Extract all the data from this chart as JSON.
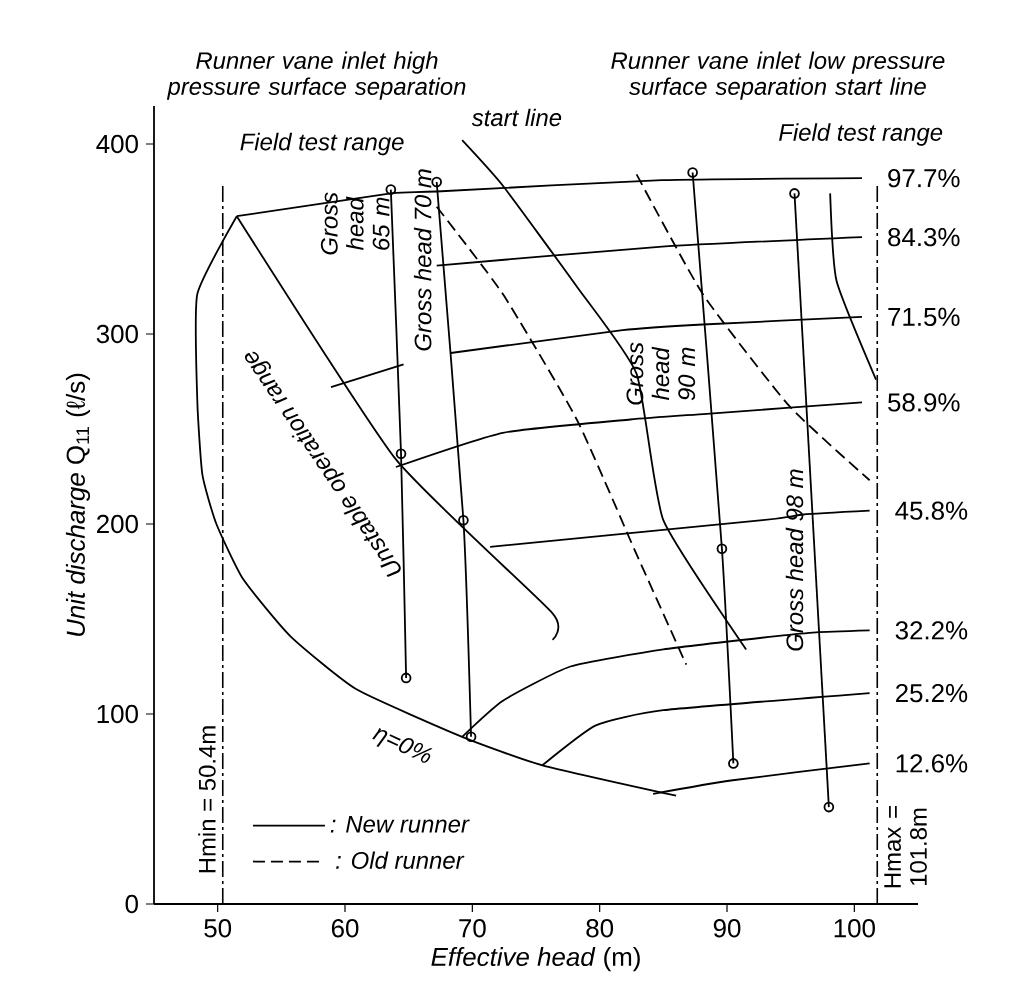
{
  "chart_data": {
    "type": "line",
    "xlabel": "*Effective head* (m)",
    "ylabel": "*Unit discharge* Q$_{11}$ (ℓ/s)",
    "xlim": [
      45,
      105
    ],
    "ylim": [
      0,
      420
    ],
    "xticks": [
      50,
      60,
      70,
      80,
      90,
      100
    ],
    "yticks": [
      0,
      100,
      200,
      300,
      400
    ],
    "grid": false,
    "legend": "bottom left",
    "marker": "none",
    "line_style": "solid",
    "series": [
      {
        "color": "#000000",
        "x": [
          51.5,
          48.4,
          48.4,
          48.8,
          49.9,
          52.0,
          55.7,
          60.9,
          69.2,
          75.5,
          86.0
        ],
        "values": [
          362,
          321,
          265,
          226,
          200,
          171,
          141,
          113,
          88,
          73,
          57
        ]
      },
      {
        "name": "97.7%",
        "color": "#000000",
        "x": [
          51.5,
          63.6,
          67.2,
          84.9,
          100.6
        ],
        "values": [
          362,
          374,
          375,
          381,
          382
        ]
      },
      {
        "name": "84.3%",
        "color": "#000000",
        "x": [
          67.2,
          84.9,
          100.6
        ],
        "values": [
          336,
          346,
          351
        ]
      },
      {
        "name": "71.5%",
        "color": "#000000",
        "x": [
          58.9,
          64.6,
          66.5,
          68.3,
          81.8,
          88.1,
          100.6
        ],
        "values": [
          272,
          284,
          null,
          290,
          302,
          305,
          309
        ]
      },
      {
        "name": "58.9%",
        "color": "#000000",
        "x": [
          64.0,
          72.4,
          82.4,
          88.4,
          100.6
        ],
        "values": [
          230,
          248,
          255,
          258,
          264
        ]
      },
      {
        "name": "45.8%",
        "color": "#000000",
        "x": [
          71.4,
          92.8,
          96.0,
          101.2
        ],
        "values": [
          188,
          202,
          205,
          207
        ]
      },
      {
        "name": "32.2%",
        "color": "#000000",
        "x": [
          69.2,
          72.4,
          77.7,
          85.0,
          93.9,
          97.0,
          101.2
        ],
        "values": [
          88,
          107,
          125,
          134,
          141,
          143,
          144
        ]
      },
      {
        "name": "25.2%",
        "color": "#000000",
        "x": [
          75.5,
          79.7,
          85.0,
          101.2
        ],
        "values": [
          73,
          94,
          102,
          111
        ]
      },
      {
        "name": "12.6%",
        "color": "#000000",
        "x": [
          84.2,
          90.3,
          101.2
        ],
        "values": [
          58,
          65,
          74
        ]
      },
      {
        "color": "#000000",
        "marker": "circle",
        "x": [
          63.6,
          64.4,
          64.8
        ],
        "values": [
          376,
          237,
          119
        ]
      },
      {
        "color": "#000000",
        "marker": "circle",
        "x": [
          67.2,
          69.3,
          69.9
        ],
        "values": [
          380,
          202,
          88
        ]
      },
      {
        "color": "#000000",
        "marker": "circle",
        "x": [
          87.3,
          89.6,
          90.5
        ],
        "values": [
          385,
          187,
          74
        ]
      },
      {
        "color": "#000000",
        "marker": "circle",
        "x": [
          95.3,
          98.0
        ],
        "values": [
          374,
          51
        ]
      },
      {
        "name": ": New runner",
        "color": "#000000",
        "x": [
          69.2,
          72.4,
          78.2,
          82.9,
          85.0,
          91.5
        ],
        "values": [
          402,
          378,
          325,
          279,
          202,
          134
        ]
      },
      {
        "name": ": Old runner",
        "color": "#000000",
        "line_style": "dashed",
        "x": [
          67.2,
          72.4,
          78.2,
          82.9,
          86.8
        ],
        "values": [
          367,
          321,
          255,
          184,
          126
        ]
      },
      {
        "color": "#000000",
        "x": [
          51.5,
          64.0,
          76.3,
          76.3
        ],
        "values": [
          362,
          234,
          153,
          139
        ]
      },
      {
        "color": "#000000",
        "x": [
          98.1,
          98.6,
          101.7
        ],
        "values": [
          374,
          328,
          276
        ]
      },
      {
        "color": "#000000",
        "line_style": "dashed",
        "x": [
          82.9,
          88.1,
          94.9,
          101.2
        ],
        "values": [
          384,
          321,
          262,
          223
        ]
      }
    ],
    "ref_lines": [
      {
        "axis": "x",
        "value": 50.4,
        "label": "Hmin = 50.4m",
        "line_style": "dashdot"
      },
      {
        "axis": "x",
        "value": 101.8,
        "label": "Hmax = 101.8m",
        "line_style": "dashdot"
      }
    ],
    "annotations": [
      "Runner vane inlet high pressure surface separation",
      "start line",
      "Runner vane inlet low pressure surface separation start line",
      "Field test range",
      "Field test range",
      "Gross head 65 m",
      "Gross head 70 m",
      "Gross head 90 m",
      "Gross head 98 m",
      "Unstable operation range",
      "η=0%"
    ]
  }
}
